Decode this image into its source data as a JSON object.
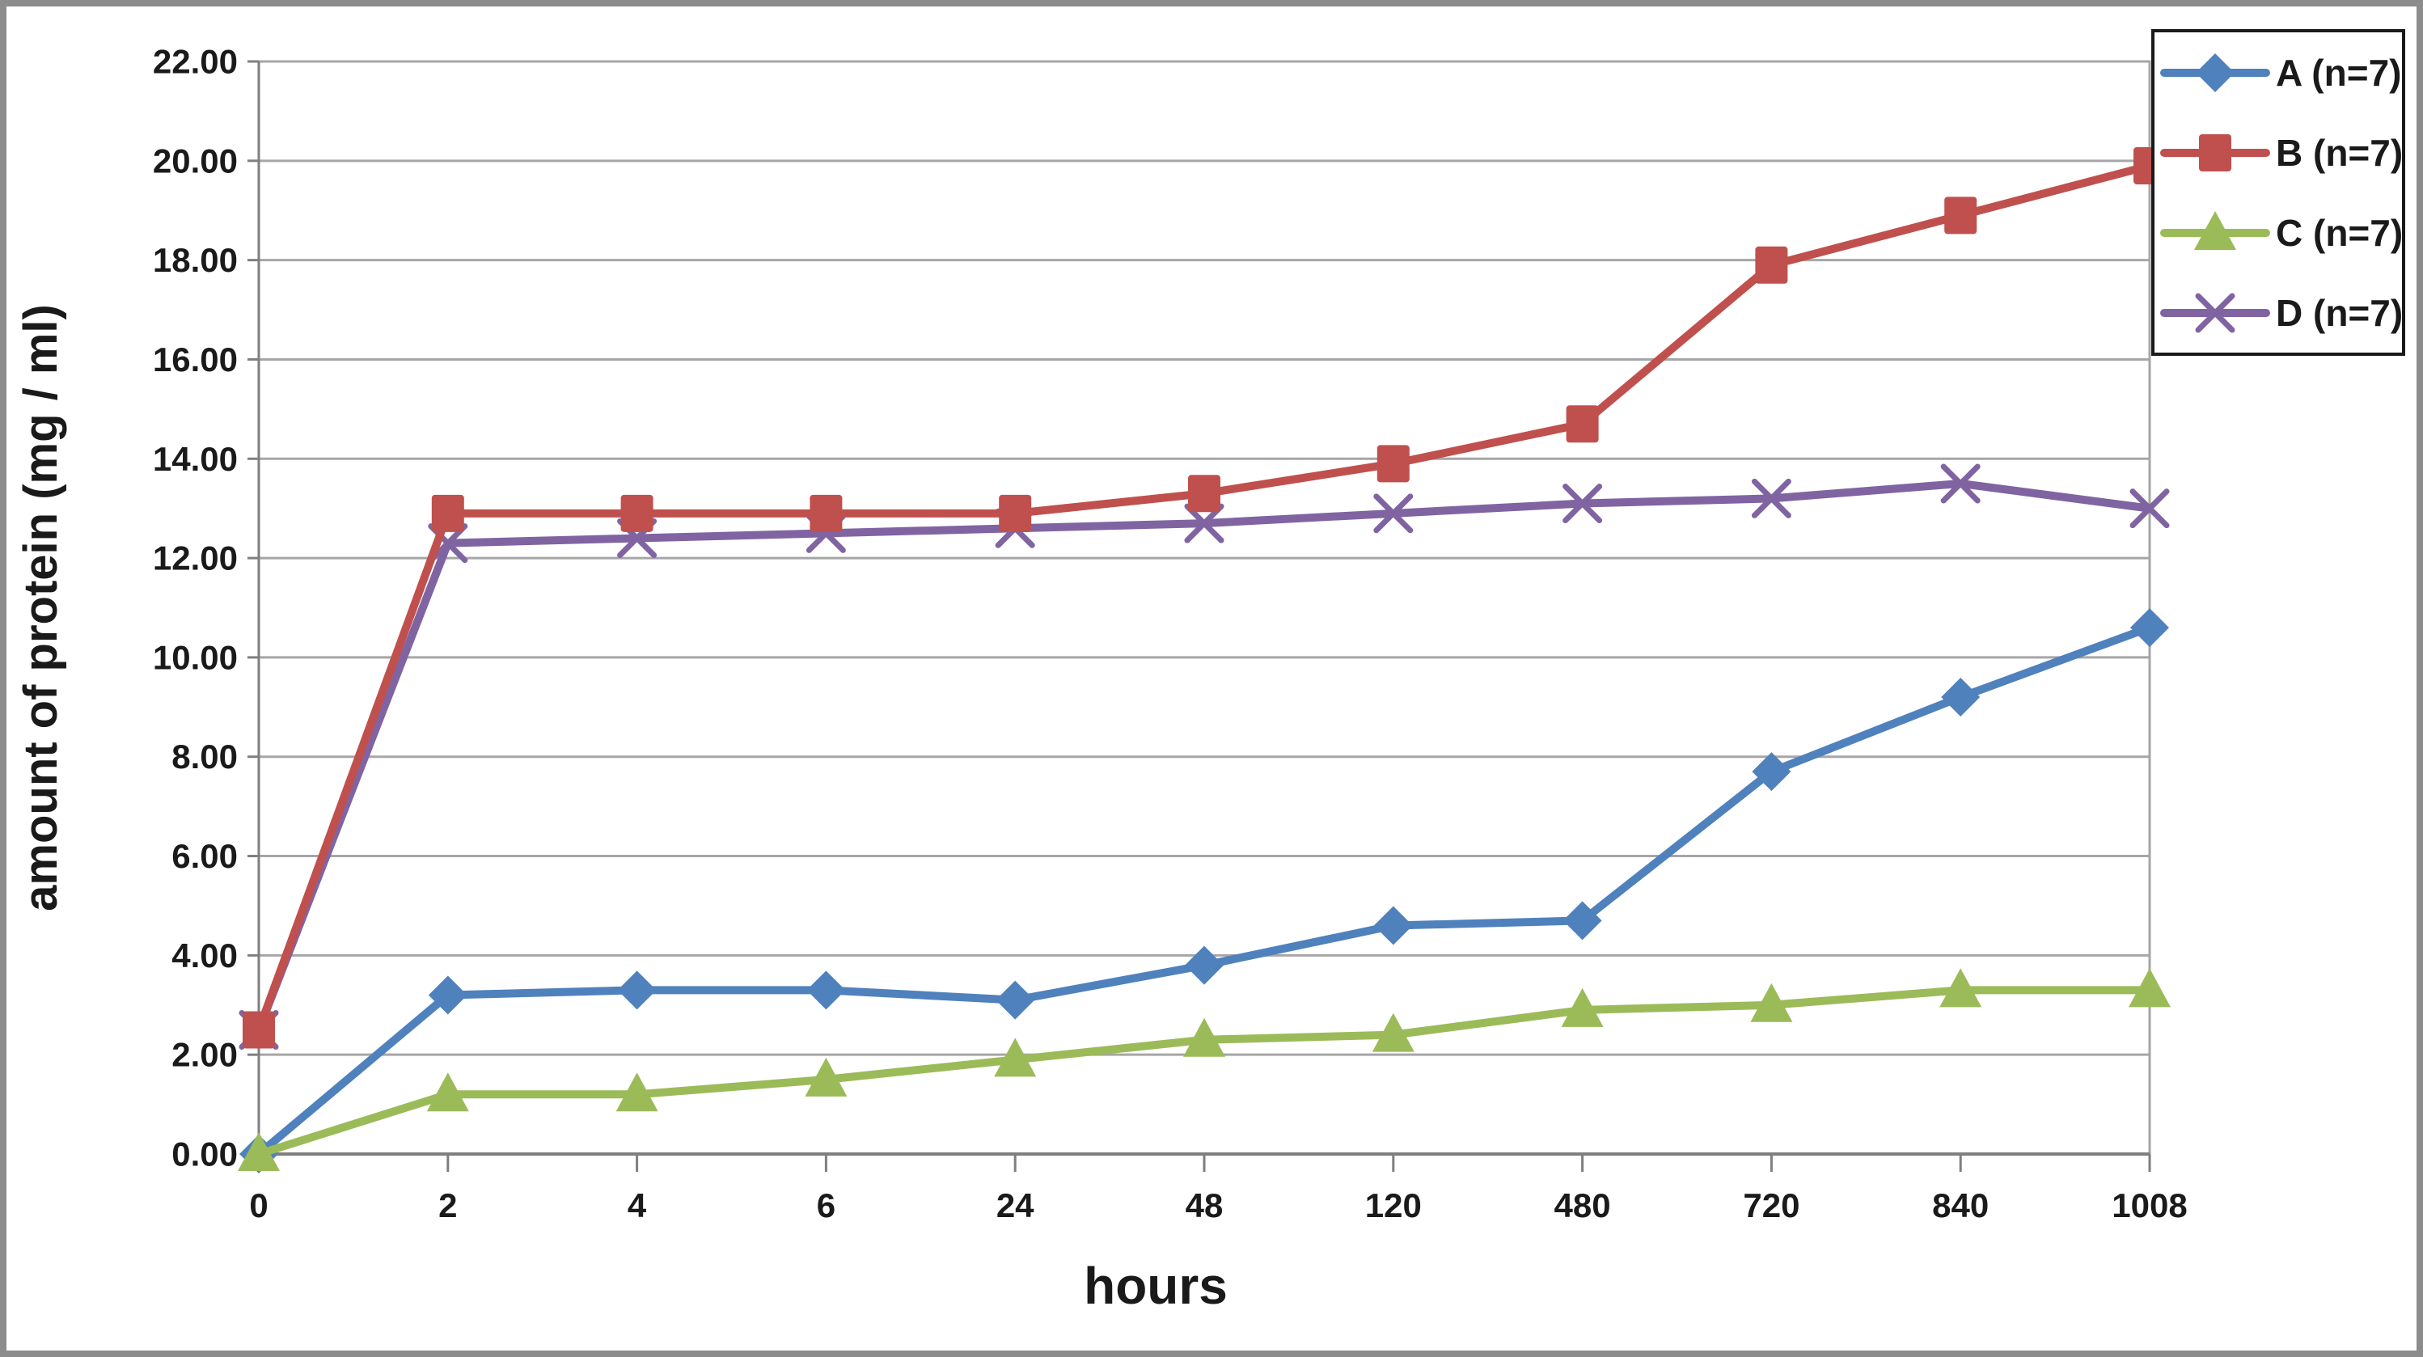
{
  "chart_data": {
    "type": "line",
    "title": "",
    "xlabel": "hours",
    "ylabel": "amount of protein (mg / ml)",
    "x_categories": [
      "0",
      "2",
      "4",
      "6",
      "24",
      "48",
      "120",
      "480",
      "720",
      "840",
      "1008"
    ],
    "y_ticks": [
      0,
      2,
      4,
      6,
      8,
      10,
      12,
      14,
      16,
      18,
      20,
      22
    ],
    "y_tick_labels": [
      "0.00",
      "2.00",
      "4.00",
      "6.00",
      "8.00",
      "10.00",
      "12.00",
      "14.00",
      "16.00",
      "18.00",
      "20.00",
      "22.00"
    ],
    "ylim": [
      0,
      22
    ],
    "grid": "horizontal",
    "legend_position": "top-right",
    "series": [
      {
        "name": "A (n=7)",
        "marker": "diamond",
        "color": "#4F81BD",
        "values": [
          0.0,
          3.2,
          3.3,
          3.3,
          3.1,
          3.8,
          4.6,
          4.7,
          7.7,
          9.2,
          10.6
        ]
      },
      {
        "name": "B (n=7)",
        "marker": "square",
        "color": "#C0504D",
        "values": [
          2.5,
          12.9,
          12.9,
          12.9,
          12.9,
          13.3,
          13.9,
          14.7,
          17.9,
          18.9,
          19.9
        ]
      },
      {
        "name": "C (n=7)",
        "marker": "triangle",
        "color": "#9BBB59",
        "values": [
          0.0,
          1.2,
          1.2,
          1.5,
          1.9,
          2.3,
          2.4,
          2.9,
          3.0,
          3.3,
          3.3
        ]
      },
      {
        "name": "D (n=7)",
        "marker": "x",
        "color": "#8064A2",
        "values": [
          2.5,
          12.3,
          12.4,
          12.5,
          12.6,
          12.7,
          12.9,
          13.1,
          13.2,
          13.5,
          13.0
        ]
      }
    ]
  },
  "colors": {
    "background": "#FFFFFF",
    "frame_border": "#8C8C8C",
    "plot_border": "#A6A6A6",
    "gridline": "#A6A6A6",
    "axis_line": "#7F7F7F",
    "tick": "#7F7F7F",
    "legend_border": "#1A1A1A",
    "text": "#1A1A1A"
  }
}
